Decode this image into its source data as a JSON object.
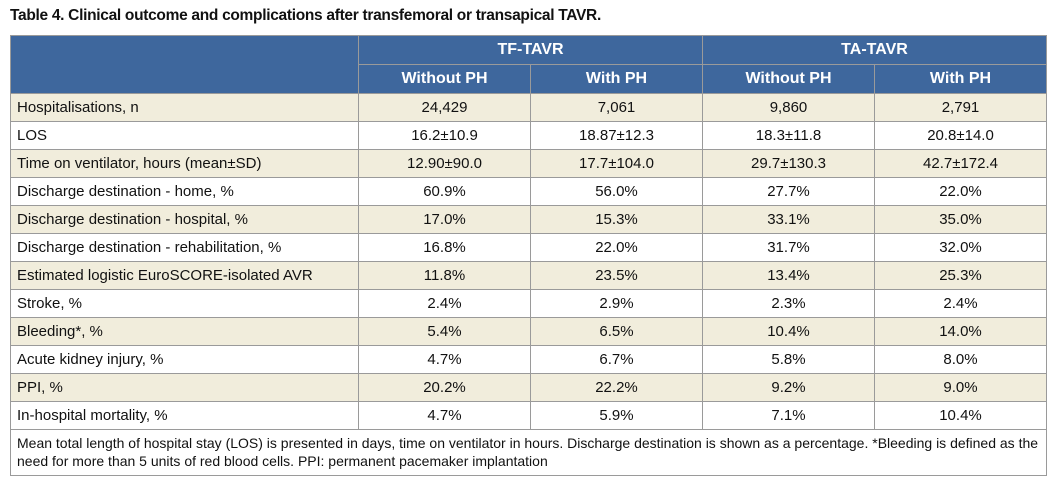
{
  "title": "Table 4. Clinical outcome and complications after transfemoral or transapical TAVR.",
  "table": {
    "groups": [
      "TF-TAVR",
      "TA-TAVR"
    ],
    "subheaders": [
      "Without PH",
      "With PH",
      "Without PH",
      "With PH"
    ],
    "rows": [
      [
        "Hospitalisations, n",
        "24,429",
        "7,061",
        "9,860",
        "2,791"
      ],
      [
        "LOS",
        "16.2±10.9",
        "18.87±12.3",
        "18.3±11.8",
        "20.8±14.0"
      ],
      [
        "Time on ventilator, hours (mean±SD)",
        "12.90±90.0",
        "17.7±104.0",
        "29.7±130.3",
        "42.7±172.4"
      ],
      [
        "Discharge destination - home, %",
        "60.9%",
        "56.0%",
        "27.7%",
        "22.0%"
      ],
      [
        "Discharge destination - hospital, %",
        "17.0%",
        "15.3%",
        "33.1%",
        "35.0%"
      ],
      [
        "Discharge destination - rehabilitation, %",
        "16.8%",
        "22.0%",
        "31.7%",
        "32.0%"
      ],
      [
        "Estimated logistic EuroSCORE-isolated AVR",
        "11.8%",
        "23.5%",
        "13.4%",
        "25.3%"
      ],
      [
        "Stroke, %",
        "2.4%",
        "2.9%",
        "2.3%",
        "2.4%"
      ],
      [
        "Bleeding*, %",
        "5.4%",
        "6.5%",
        "10.4%",
        "14.0%"
      ],
      [
        "Acute kidney injury, %",
        "4.7%",
        "6.7%",
        "5.8%",
        "8.0%"
      ],
      [
        "PPI, %",
        "20.2%",
        "22.2%",
        "9.2%",
        "9.0%"
      ],
      [
        "In-hospital mortality, %",
        "4.7%",
        "5.9%",
        "7.1%",
        "10.4%"
      ]
    ],
    "footnote": "Mean total length of hospital stay (LOS) is presented in days, time on ventilator in hours. Discharge destination is shown as a percentage. *Bleeding is defined as the need for more than 5 units of red blood cells. PPI: permanent pacemaker implantation"
  }
}
